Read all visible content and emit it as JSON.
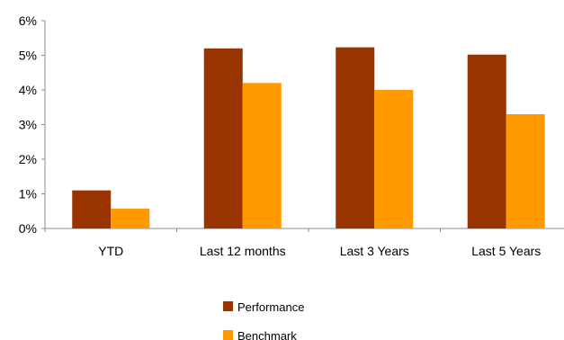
{
  "chart_data": {
    "type": "bar",
    "categories": [
      "YTD",
      "Last 12 months",
      "Last 3 Years",
      "Last 5 Years"
    ],
    "series": [
      {
        "name": "Performance",
        "values": [
          1.1,
          5.2,
          5.23,
          5.02
        ],
        "color": "#993300"
      },
      {
        "name": "Benchmark",
        "values": [
          0.57,
          4.2,
          4.0,
          3.3
        ],
        "color": "#ff9900"
      }
    ],
    "y_ticks": [
      "0%",
      "1%",
      "2%",
      "3%",
      "4%",
      "5%",
      "6%"
    ],
    "ylim": [
      0,
      6
    ],
    "grid": false,
    "legend_position": "bottom"
  }
}
